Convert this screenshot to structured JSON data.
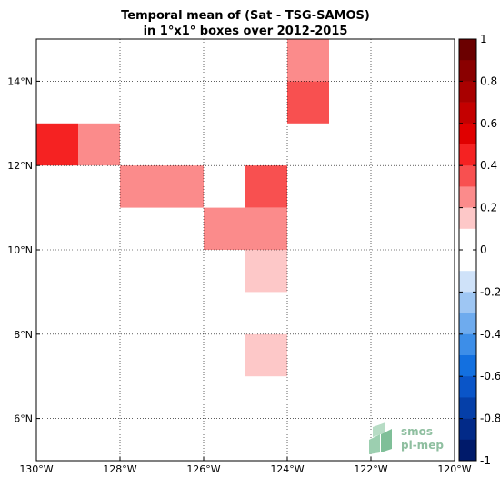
{
  "title": {
    "line1": "Temporal mean of (Sat - TSG-SAMOS)",
    "line2": "in 1°x1° boxes over 2012-2015"
  },
  "watermark": {
    "line1": "smos",
    "line2": "pi-mep"
  },
  "chart_data": {
    "type": "heatmap",
    "title": "Temporal mean of (Sat - TSG-SAMOS) in 1°x1° boxes over 2012-2015",
    "x_range": [
      -130,
      -120
    ],
    "y_range": [
      5,
      15
    ],
    "x_ticks": [
      {
        "value": -130,
        "label": "130°W"
      },
      {
        "value": -128,
        "label": "128°W"
      },
      {
        "value": -126,
        "label": "126°W"
      },
      {
        "value": -124,
        "label": "124°W"
      },
      {
        "value": -122,
        "label": "122°W"
      },
      {
        "value": -120,
        "label": "120°W"
      }
    ],
    "y_ticks": [
      {
        "value": 6,
        "label": "6°N"
      },
      {
        "value": 8,
        "label": "8°N"
      },
      {
        "value": 10,
        "label": "10°N"
      },
      {
        "value": 12,
        "label": "12°N"
      },
      {
        "value": 14,
        "label": "14°N"
      }
    ],
    "grid": true,
    "colorbar": {
      "range": [
        -1,
        1
      ],
      "step": 0.1,
      "ticks": [
        {
          "value": 1,
          "label": "1"
        },
        {
          "value": 0.8,
          "label": "0.8"
        },
        {
          "value": 0.6,
          "label": "0.6"
        },
        {
          "value": 0.4,
          "label": "0.4"
        },
        {
          "value": 0.2,
          "label": "0.2"
        },
        {
          "value": 0,
          "label": "0"
        },
        {
          "value": -0.2,
          "label": "-0.2"
        },
        {
          "value": -0.4,
          "label": "-0.4"
        },
        {
          "value": -0.6,
          "label": "-0.6"
        },
        {
          "value": -0.8,
          "label": "-0.8"
        },
        {
          "value": -1,
          "label": "-1"
        }
      ],
      "colors_top_to_bottom": [
        "#6b0000",
        "#8a0000",
        "#a80000",
        "#c40000",
        "#e00000",
        "#f52222",
        "#f85050",
        "#fb8b8b",
        "#fdc8c8",
        "#ffffff",
        "#ffffff",
        "#cfe2f9",
        "#9ec6f3",
        "#6eabee",
        "#3d8ee8",
        "#1370e0",
        "#0a55c8",
        "#053fa8",
        "#022a88",
        "#001a6a"
      ]
    },
    "cells": [
      {
        "lon": -130,
        "lat": 12,
        "value": 0.45
      },
      {
        "lon": -129,
        "lat": 12,
        "value": 0.25
      },
      {
        "lon": -128,
        "lat": 11,
        "value": 0.25
      },
      {
        "lon": -127,
        "lat": 11,
        "value": 0.25
      },
      {
        "lon": -125,
        "lat": 11,
        "value": 0.35
      },
      {
        "lon": -126,
        "lat": 10,
        "value": 0.25
      },
      {
        "lon": -125,
        "lat": 10,
        "value": 0.25
      },
      {
        "lon": -125,
        "lat": 9,
        "value": 0.15
      },
      {
        "lon": -125,
        "lat": 7,
        "value": 0.15
      },
      {
        "lon": -124,
        "lat": 14,
        "value": 0.25
      },
      {
        "lon": -124,
        "lat": 13,
        "value": 0.35
      }
    ]
  }
}
